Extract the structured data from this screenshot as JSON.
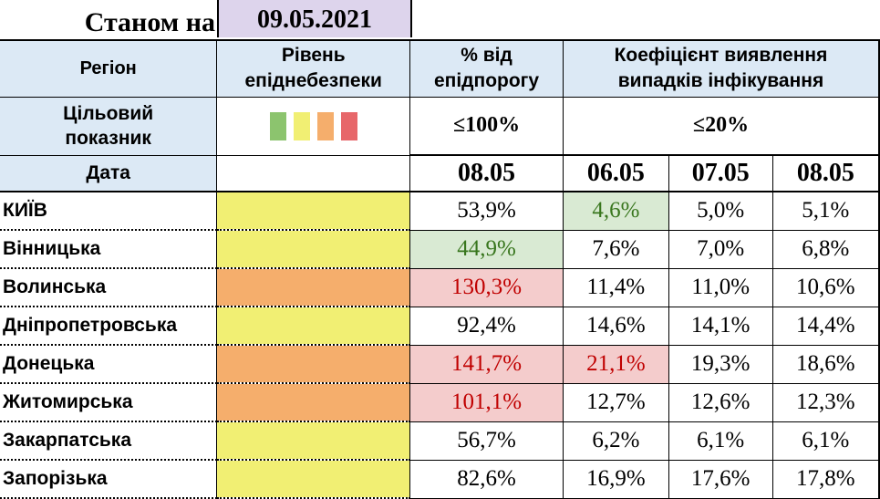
{
  "title": {
    "label": "Станом на",
    "date": "09.05.2021"
  },
  "headers": {
    "region": "Регіон",
    "level_line1": "Рівень",
    "level_line2": "епіднебезпеки",
    "percent_line1": "% від",
    "percent_line2": "епідпорогу",
    "coef_line1": "Коефіцієнт виявлення",
    "coef_line2": "випадків інфікування"
  },
  "target": {
    "label_line1": "Цільовий",
    "label_line2": "показник",
    "percent": "≤100%",
    "coef": "≤20%",
    "level_colors": [
      "#8cc46e",
      "#f1ef73",
      "#f5ae6c",
      "#e7676a"
    ]
  },
  "date_row": {
    "label": "Дата",
    "percent_date": "08.05",
    "coef_dates": [
      "06.05",
      "07.05",
      "08.05"
    ]
  },
  "colors": {
    "header_bg": "#dce9f5",
    "yellow": "#f1ef73",
    "orange": "#f5ae6c",
    "good_bg": "#d9ead3",
    "good_fg": "#38761d",
    "bad_bg": "#f4cccc",
    "bad_fg": "#c00000"
  },
  "rows": [
    {
      "region": "КИЇВ",
      "level": "yellow",
      "pct": "53,9%",
      "pct_state": "",
      "c1": "4,6%",
      "c1_state": "good",
      "c2": "5,0%",
      "c3": "5,1%"
    },
    {
      "region": "Вінницька",
      "level": "yellow",
      "pct": "44,9%",
      "pct_state": "good",
      "c1": "7,6%",
      "c1_state": "",
      "c2": "7,0%",
      "c3": "6,8%"
    },
    {
      "region": "Волинська",
      "level": "orange",
      "pct": "130,3%",
      "pct_state": "bad",
      "c1": "11,4%",
      "c1_state": "",
      "c2": "11,0%",
      "c3": "10,6%"
    },
    {
      "region": "Дніпропетровська",
      "level": "yellow",
      "pct": "92,4%",
      "pct_state": "",
      "c1": "14,6%",
      "c1_state": "",
      "c2": "14,1%",
      "c3": "14,4%"
    },
    {
      "region": "Донецька",
      "level": "orange",
      "pct": "141,7%",
      "pct_state": "bad",
      "c1": "21,1%",
      "c1_state": "bad",
      "c2": "19,3%",
      "c3": "18,6%"
    },
    {
      "region": "Житомирська",
      "level": "orange",
      "pct": "101,1%",
      "pct_state": "bad",
      "c1": "12,7%",
      "c1_state": "",
      "c2": "12,6%",
      "c3": "12,3%"
    },
    {
      "region": "Закарпатська",
      "level": "yellow",
      "pct": "56,7%",
      "pct_state": "",
      "c1": "6,2%",
      "c1_state": "",
      "c2": "6,1%",
      "c3": "6,1%"
    },
    {
      "region": "Запорізька",
      "level": "yellow",
      "pct": "82,6%",
      "pct_state": "",
      "c1": "16,9%",
      "c1_state": "",
      "c2": "17,6%",
      "c3": "17,8%"
    }
  ]
}
